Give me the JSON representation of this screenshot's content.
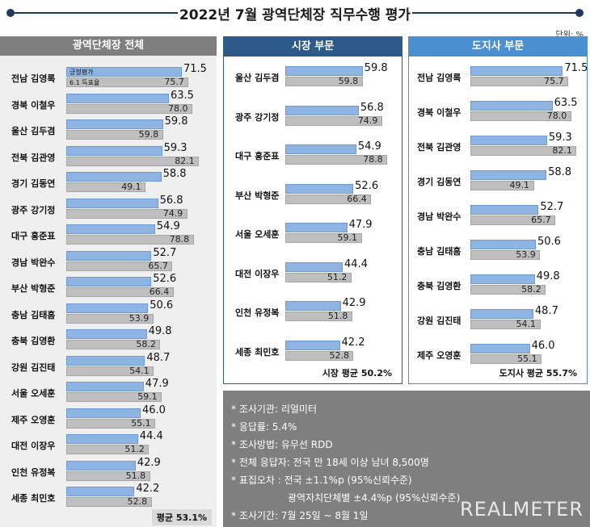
{
  "title": "2022년 7월 광역단체장 직무수행 평가",
  "unit": "단위: %",
  "legend": {
    "eval": "긍정평가",
    "target": "6.1 득표율"
  },
  "colors": {
    "eval_bar": "#8db4e2",
    "target_bar": "#bfbfbf",
    "title_accent": "#1f3a5f",
    "head_all": "#7f7f7f",
    "head_city": "#2e5a8a",
    "head_province": "#4a90d0",
    "notes_bg": "#7f7f7f"
  },
  "chart_data": [
    {
      "type": "bar",
      "title": "광역단체장 전체",
      "categories": [
        "전남 김영록",
        "경북 이철우",
        "울산 김두겸",
        "전북 김관영",
        "경기 김동연",
        "광주 강기정",
        "대구 홍준표",
        "경남 박완수",
        "부산 박형준",
        "충남 김태흠",
        "충북 김영환",
        "강원 김진태",
        "서울 오세훈",
        "제주 오영훈",
        "대전 이장우",
        "인천 유정복",
        "세종 최민호"
      ],
      "series": [
        {
          "name": "긍정평가",
          "values": [
            71.5,
            63.5,
            59.8,
            59.3,
            58.8,
            56.8,
            54.9,
            52.7,
            52.6,
            50.6,
            49.8,
            48.7,
            47.9,
            46.0,
            44.4,
            42.9,
            42.2
          ]
        },
        {
          "name": "6.1 득표율",
          "values": [
            75.7,
            78.0,
            59.8,
            82.1,
            49.1,
            74.9,
            78.8,
            65.7,
            66.4,
            53.9,
            58.2,
            54.1,
            59.1,
            55.1,
            51.2,
            51.8,
            52.8
          ]
        }
      ],
      "average_label": "평균 53.1%"
    },
    {
      "type": "bar",
      "title": "시장 부문",
      "categories": [
        "울산 김두겸",
        "광주 강기정",
        "대구 홍준표",
        "부산 박형준",
        "서울 오세훈",
        "대전 이장우",
        "인천 유정복",
        "세종 최민호"
      ],
      "series": [
        {
          "name": "긍정평가",
          "values": [
            59.8,
            56.8,
            54.9,
            52.6,
            47.9,
            44.4,
            42.9,
            42.2
          ]
        },
        {
          "name": "6.1 득표율",
          "values": [
            59.8,
            74.9,
            78.8,
            66.4,
            59.1,
            51.2,
            51.8,
            52.8
          ]
        }
      ],
      "average_label": "시장 평균 50.2%"
    },
    {
      "type": "bar",
      "title": "도지사 부문",
      "categories": [
        "전남 김영록",
        "경북 이철우",
        "전북 김관영",
        "경기 김동연",
        "경남 박완수",
        "충남 김태흠",
        "충북 김영환",
        "강원 김진태",
        "제주 오영훈"
      ],
      "series": [
        {
          "name": "긍정평가",
          "values": [
            71.5,
            63.5,
            59.3,
            58.8,
            52.7,
            50.6,
            49.8,
            48.7,
            46.0
          ]
        },
        {
          "name": "6.1 득표율",
          "values": [
            75.7,
            78.0,
            82.1,
            49.1,
            65.7,
            53.9,
            58.2,
            54.1,
            55.1
          ]
        }
      ],
      "average_label": "도지사 평균 55.7%"
    }
  ],
  "notes": [
    "* 조사기관: 리얼미터",
    "* 응답률: 5.4%",
    "* 조사방법: 유무선 RDD",
    "* 전체 응답자: 전국 만 18세 이상 남녀 8,500명",
    "* 표집오차 : 전국 ±1.1%p (95%신뢰수준)",
    "광역자치단체별 ±4.4%p (95%신뢰수준)",
    "* 조사기간: 7월 25일 ~ 8월 1일"
  ],
  "logo": "REALMETER"
}
